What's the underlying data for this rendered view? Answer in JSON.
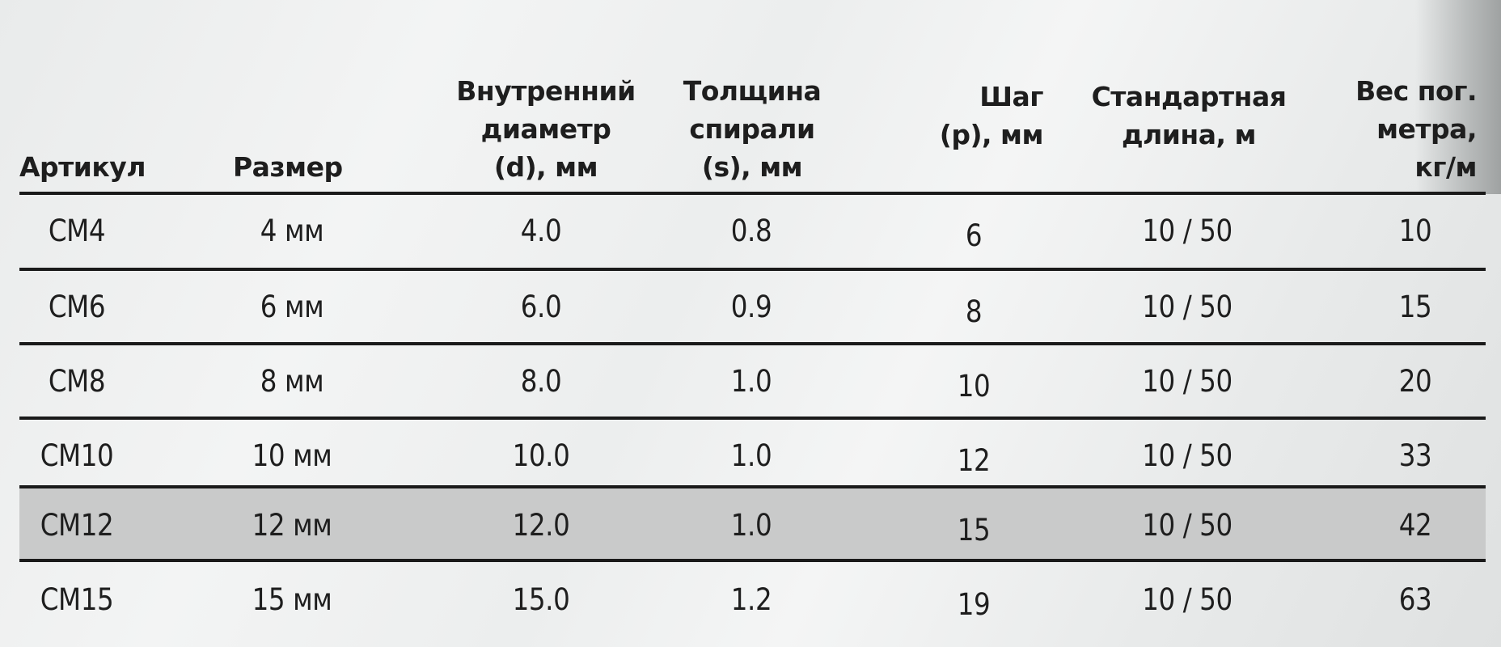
{
  "table": {
    "headers": [
      [
        "Артикул"
      ],
      [
        "Размер"
      ],
      [
        "Внутренний",
        "диаметр",
        "(d), мм"
      ],
      [
        "Толщина",
        "спирали",
        "(s), мм"
      ],
      [
        "Шаг",
        "(p), мм"
      ],
      [
        "Стандартная",
        "длина, м"
      ],
      [
        "Вес пог.",
        "метра,",
        "кг/м"
      ]
    ],
    "rows": [
      [
        "CM4",
        "4 мм",
        "4.0",
        "0.8",
        "6",
        "10 / 50",
        "10"
      ],
      [
        "CM6",
        "6 мм",
        "6.0",
        "0.9",
        "8",
        "10 / 50",
        "15"
      ],
      [
        "CM8",
        "8 мм",
        "8.0",
        "1.0",
        "10",
        "10 / 50",
        "20"
      ],
      [
        "CM10",
        "10 мм",
        "10.0",
        "1.0",
        "12",
        "10 / 50",
        "33"
      ],
      [
        "CM12",
        "12 мм",
        "12.0",
        "1.0",
        "15",
        "10 / 50",
        "42"
      ],
      [
        "CM15",
        "15 мм",
        "15.0",
        "1.2",
        "19",
        "10 / 50",
        "63"
      ]
    ],
    "highlighted_row": 4,
    "highlight_color": "#c9caca",
    "rule_color": "#1a1a1a"
  }
}
